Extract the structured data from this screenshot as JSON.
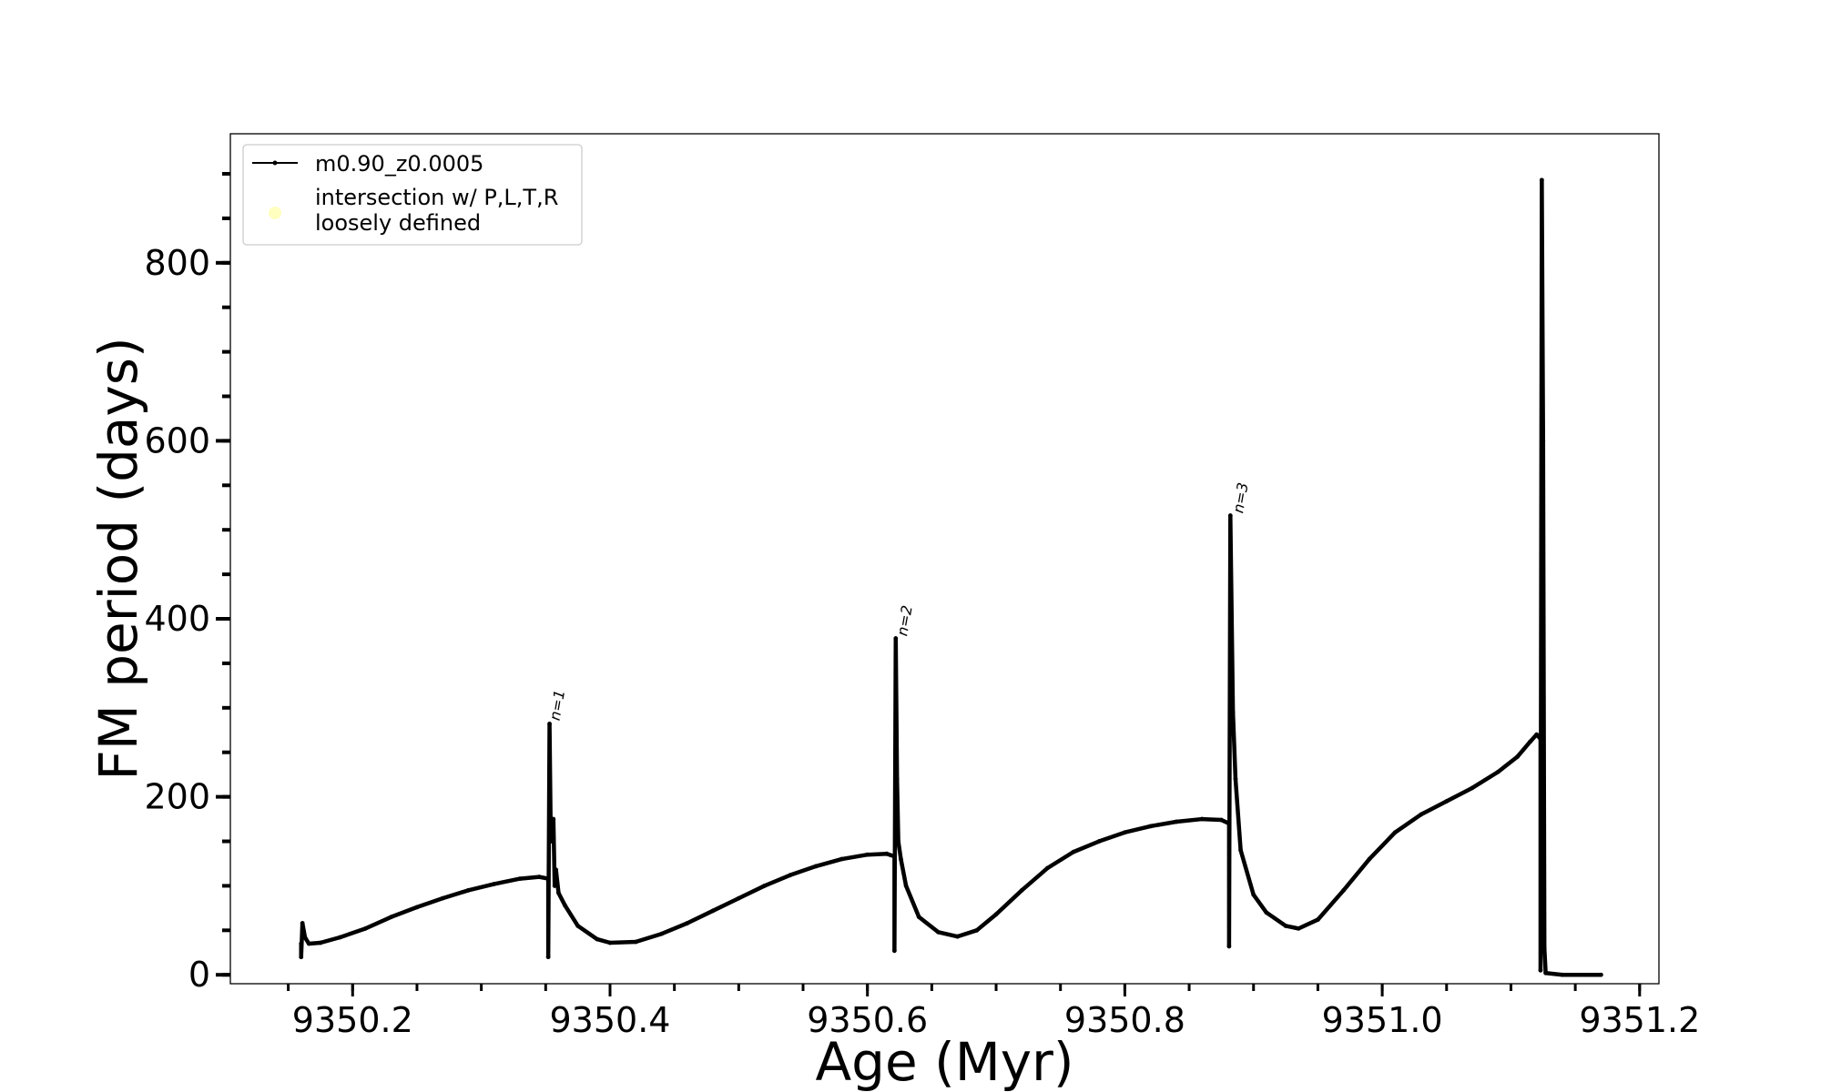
{
  "chart_data": {
    "type": "line",
    "xlabel": "Age (Myr)",
    "ylabel": "FM period (days)",
    "xlim": [
      9350.105,
      9351.215
    ],
    "ylim": [
      -10,
      945
    ],
    "x_ticks": [
      {
        "value": 9350.2,
        "label": "9350.2"
      },
      {
        "value": 9350.4,
        "label": "9350.4"
      },
      {
        "value": 9350.6,
        "label": "9350.6"
      },
      {
        "value": 9350.8,
        "label": "9350.8"
      },
      {
        "value": 9351.0,
        "label": "9351.0"
      },
      {
        "value": 9351.2,
        "label": "9351.2"
      }
    ],
    "y_ticks": [
      {
        "value": 0,
        "label": "0"
      },
      {
        "value": 200,
        "label": "200"
      },
      {
        "value": 400,
        "label": "400"
      },
      {
        "value": 600,
        "label": "600"
      },
      {
        "value": 800,
        "label": "800"
      }
    ],
    "x_minor_step": 0.05,
    "y_minor_step": 50,
    "grid": false,
    "legend": {
      "placement": "top-left",
      "entries": [
        {
          "label": "m0.90_z0.0005",
          "marker": "line-dot",
          "color": "#000000"
        },
        {
          "label": "intersection w/ P,L,T,R loosely defined",
          "lines": [
            "intersection w/ P,L,T,R",
            "loosely defined"
          ],
          "marker": "circle",
          "color": "#ffffc0"
        }
      ]
    },
    "annotations": [
      {
        "text": "n=1",
        "x": 9350.355,
        "y": 285,
        "rotation": -80
      },
      {
        "text": "n=2",
        "x": 9350.625,
        "y": 380,
        "rotation": -80
      },
      {
        "text": "n=3",
        "x": 9350.886,
        "y": 518,
        "rotation": -80
      }
    ],
    "series": [
      {
        "name": "m0.90_z0.0005",
        "color": "#000000",
        "points": [
          [
            9350.16,
            35
          ],
          [
            9350.16,
            20
          ],
          [
            9350.161,
            58
          ],
          [
            9350.163,
            42
          ],
          [
            9350.166,
            35
          ],
          [
            9350.175,
            36
          ],
          [
            9350.19,
            42
          ],
          [
            9350.21,
            52
          ],
          [
            9350.23,
            65
          ],
          [
            9350.25,
            76
          ],
          [
            9350.27,
            86
          ],
          [
            9350.29,
            95
          ],
          [
            9350.31,
            102
          ],
          [
            9350.33,
            108
          ],
          [
            9350.345,
            110
          ],
          [
            9350.352,
            108
          ],
          [
            9350.352,
            20
          ],
          [
            9350.353,
            282
          ],
          [
            9350.354,
            150
          ],
          [
            9350.356,
            175
          ],
          [
            9350.357,
            100
          ],
          [
            9350.358,
            118
          ],
          [
            9350.36,
            92
          ],
          [
            9350.365,
            78
          ],
          [
            9350.375,
            55
          ],
          [
            9350.39,
            40
          ],
          [
            9350.4,
            36
          ],
          [
            9350.42,
            37
          ],
          [
            9350.44,
            46
          ],
          [
            9350.46,
            58
          ],
          [
            9350.48,
            72
          ],
          [
            9350.5,
            86
          ],
          [
            9350.52,
            100
          ],
          [
            9350.54,
            112
          ],
          [
            9350.56,
            122
          ],
          [
            9350.58,
            130
          ],
          [
            9350.6,
            135
          ],
          [
            9350.615,
            136
          ],
          [
            9350.621,
            133
          ],
          [
            9350.621,
            27
          ],
          [
            9350.622,
            378
          ],
          [
            9350.623,
            220
          ],
          [
            9350.624,
            150
          ],
          [
            9350.626,
            130
          ],
          [
            9350.63,
            100
          ],
          [
            9350.64,
            65
          ],
          [
            9350.655,
            48
          ],
          [
            9350.67,
            43
          ],
          [
            9350.685,
            50
          ],
          [
            9350.7,
            68
          ],
          [
            9350.72,
            95
          ],
          [
            9350.74,
            120
          ],
          [
            9350.76,
            138
          ],
          [
            9350.78,
            150
          ],
          [
            9350.8,
            160
          ],
          [
            9350.82,
            167
          ],
          [
            9350.84,
            172
          ],
          [
            9350.86,
            175
          ],
          [
            9350.875,
            174
          ],
          [
            9350.881,
            170
          ],
          [
            9350.881,
            32
          ],
          [
            9350.882,
            516
          ],
          [
            9350.884,
            295
          ],
          [
            9350.886,
            220
          ],
          [
            9350.89,
            140
          ],
          [
            9350.9,
            90
          ],
          [
            9350.91,
            70
          ],
          [
            9350.925,
            55
          ],
          [
            9350.935,
            52
          ],
          [
            9350.95,
            62
          ],
          [
            9350.97,
            95
          ],
          [
            9350.99,
            130
          ],
          [
            9351.01,
            160
          ],
          [
            9351.03,
            180
          ],
          [
            9351.05,
            195
          ],
          [
            9351.07,
            210
          ],
          [
            9351.09,
            228
          ],
          [
            9351.105,
            245
          ],
          [
            9351.115,
            262
          ],
          [
            9351.12,
            270
          ],
          [
            9351.123,
            265
          ],
          [
            9351.123,
            5
          ],
          [
            9351.124,
            893
          ],
          [
            9351.125,
            600
          ],
          [
            9351.126,
            30
          ],
          [
            9351.127,
            2
          ],
          [
            9351.14,
            0
          ],
          [
            9351.17,
            0
          ]
        ]
      }
    ]
  }
}
